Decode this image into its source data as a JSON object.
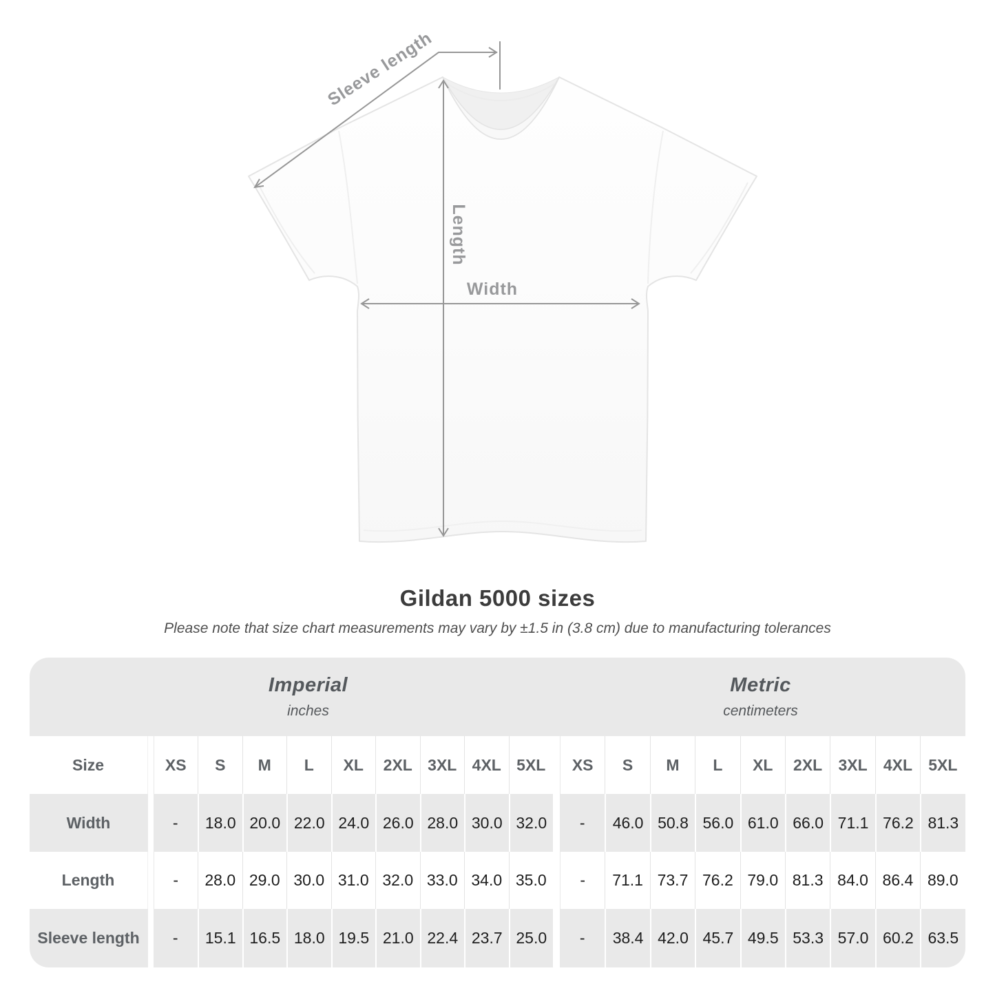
{
  "diagram": {
    "labels": {
      "sleeve_length": "Sleeve length",
      "length": "Length",
      "width": "Width"
    },
    "line_color": "#969696"
  },
  "chart_data": {
    "type": "table",
    "title": "Gildan 5000 sizes",
    "subtitle": "Please note that size chart measurements may vary by ±1.5 in (3.8 cm) due to manufacturing tolerances",
    "column_groups": [
      {
        "label": "Imperial",
        "unit": "inches"
      },
      {
        "label": "Metric",
        "unit": "centimeters"
      }
    ],
    "size_label_header": "Size",
    "sizes": [
      "XS",
      "S",
      "M",
      "L",
      "XL",
      "2XL",
      "3XL",
      "4XL",
      "5XL"
    ],
    "rows": [
      {
        "label": "Width",
        "imperial": [
          "-",
          "18.0",
          "20.0",
          "22.0",
          "24.0",
          "26.0",
          "28.0",
          "30.0",
          "32.0"
        ],
        "metric": [
          "-",
          "46.0",
          "50.8",
          "56.0",
          "61.0",
          "66.0",
          "71.1",
          "76.2",
          "81.3"
        ]
      },
      {
        "label": "Length",
        "imperial": [
          "-",
          "28.0",
          "29.0",
          "30.0",
          "31.0",
          "32.0",
          "33.0",
          "34.0",
          "35.0"
        ],
        "metric": [
          "-",
          "71.1",
          "73.7",
          "76.2",
          "79.0",
          "81.3",
          "84.0",
          "86.4",
          "89.0"
        ]
      },
      {
        "label": "Sleeve length",
        "imperial": [
          "-",
          "15.1",
          "16.5",
          "18.0",
          "19.5",
          "21.0",
          "22.4",
          "23.7",
          "25.0"
        ],
        "metric": [
          "-",
          "38.4",
          "42.0",
          "45.7",
          "49.5",
          "53.3",
          "57.0",
          "60.2",
          "63.5"
        ]
      }
    ]
  },
  "colors": {
    "table_shade": "#e9e9e9",
    "data_text": "#1d1d1d",
    "label_text": "#5d6165",
    "measure_gray": "#98999b",
    "title_text": "#3c3c3c"
  }
}
